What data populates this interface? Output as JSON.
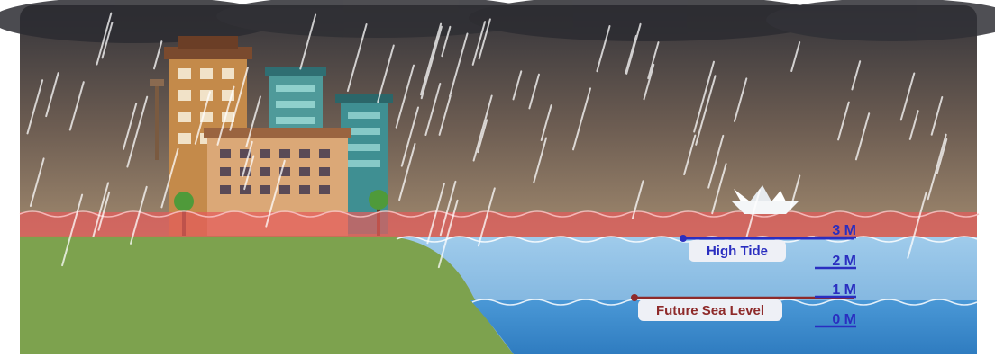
{
  "labels": {
    "high_tide": "High Tide",
    "future_sea_level": "Future Sea Level"
  },
  "scale": {
    "ticks": [
      {
        "value": 3,
        "text": "3 M"
      },
      {
        "value": 2,
        "text": "2 M"
      },
      {
        "value": 1,
        "text": "1 M"
      },
      {
        "value": 0,
        "text": "0 M"
      }
    ]
  },
  "colors": {
    "sky_top": "#3b3a40",
    "sky_bottom": "#d6b58a",
    "flood_band": "#e06a6a",
    "water_light": "#8ec0e6",
    "water_deep": "#3f8ccc",
    "land": "#7fa04f",
    "scale_blue": "#2a2ec0",
    "future_marker": "#8e2a2a",
    "rain": "#ffffff"
  },
  "icons": [
    "city-buildings-icon",
    "tree-icon",
    "paper-boat-icon",
    "rain-icon"
  ]
}
